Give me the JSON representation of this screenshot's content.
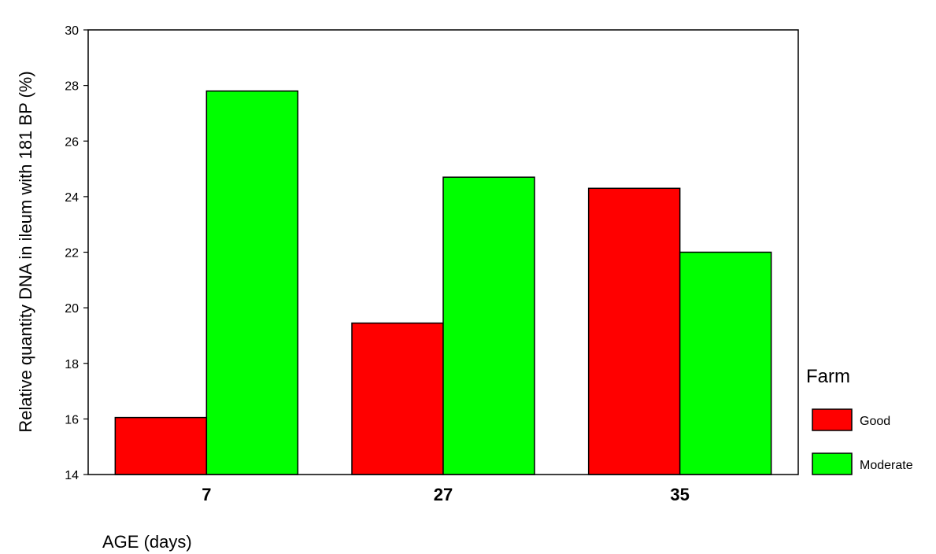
{
  "chart_data": {
    "type": "bar",
    "categories": [
      "7",
      "27",
      "35"
    ],
    "series": [
      {
        "name": "Good",
        "color": "#ff0000",
        "values": [
          16.05,
          19.45,
          24.3
        ]
      },
      {
        "name": "Moderate",
        "color": "#00ff00",
        "values": [
          27.8,
          24.7,
          22.0
        ]
      }
    ],
    "xlabel": "AGE (days)",
    "ylabel": "Relative quantity DNA  in ileum with 181 BP (%)",
    "ylim": [
      14,
      30
    ],
    "yticks": [
      "14",
      "16",
      "18",
      "20",
      "22",
      "24",
      "26",
      "28",
      "30"
    ],
    "legend_title": "Farm",
    "legend_position": "right",
    "grid": false
  }
}
